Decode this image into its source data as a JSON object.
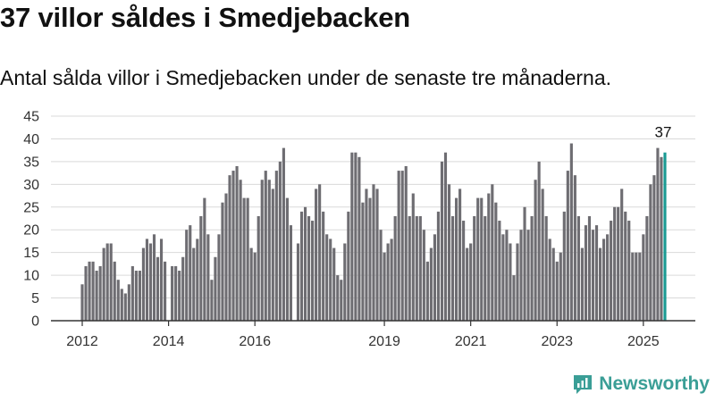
{
  "title": "37 villor såldes i Smedjebacken",
  "subtitle": "Antal sålda villor i Smedjebacken under de senaste tre månaderna.",
  "brand": {
    "name": "Newsworthy",
    "logo_icon": "newsworthy-logo-icon",
    "color": "#3a9e96"
  },
  "colors": {
    "bar": "#6e6d72",
    "highlight": "#1a9a93",
    "grid": "#d9d9d9",
    "axis": "#333333"
  },
  "chart_data": {
    "type": "bar",
    "title": "",
    "xlabel": "",
    "ylabel": "",
    "ylim": [
      0,
      45
    ],
    "yticks": [
      0,
      5,
      10,
      15,
      20,
      25,
      30,
      35,
      40,
      45
    ],
    "grid": true,
    "x_start": "2012-01",
    "x_end": "2025-08",
    "x_ticks": [
      "2012",
      "2014",
      "2016",
      "2019",
      "2021",
      "2023",
      "2025"
    ],
    "highlight_label": "37",
    "series": [
      {
        "values": [
          8,
          12,
          13,
          13,
          11,
          12,
          16,
          17,
          17,
          13,
          9,
          7,
          6,
          8,
          12,
          11,
          11,
          16,
          18,
          17,
          19,
          14,
          18,
          13,
          null,
          12,
          12,
          11,
          14,
          20,
          21,
          16,
          18,
          23,
          27,
          19,
          9,
          14,
          19,
          26,
          28,
          32,
          33,
          34,
          31,
          27,
          27,
          16,
          15,
          23,
          31,
          33,
          31,
          29,
          33,
          35,
          38,
          27,
          21,
          null,
          17,
          24,
          25,
          23,
          22,
          29,
          30,
          24,
          19,
          18,
          16,
          10,
          9,
          17,
          24,
          37,
          37,
          36,
          26,
          29,
          27,
          30,
          29,
          20,
          15,
          17,
          18,
          23,
          33,
          33,
          34,
          23,
          28,
          23,
          23,
          20,
          13,
          16,
          19,
          24,
          35,
          37,
          30,
          23,
          27,
          29,
          22,
          16,
          17,
          23,
          27,
          27,
          23,
          28,
          30,
          26,
          22,
          19,
          20,
          17,
          10,
          17,
          20,
          25,
          20,
          23,
          31,
          35,
          29,
          23,
          18,
          16,
          13,
          15,
          24,
          33,
          39,
          32,
          23,
          16,
          21,
          23,
          20,
          21,
          16,
          18,
          19,
          22,
          25,
          25,
          29,
          24,
          22,
          15,
          15,
          15,
          19,
          23,
          30,
          32,
          38,
          36,
          37
        ]
      }
    ]
  }
}
